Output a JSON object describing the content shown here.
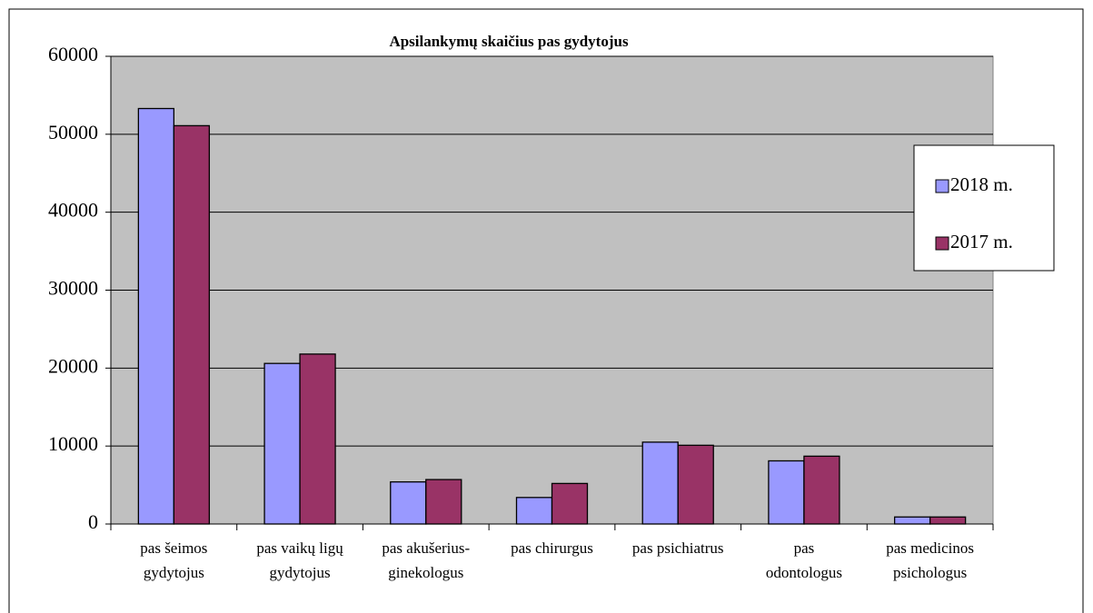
{
  "chart_data": {
    "type": "bar",
    "title": "Apsilankymų  skaičius pas gydytojus",
    "categories": [
      [
        "pas šeimos",
        "gydytojus"
      ],
      [
        "pas vaikų ligų",
        "gydytojus"
      ],
      [
        "pas akušerius-",
        "ginekologus"
      ],
      [
        "pas chirurgus"
      ],
      [
        "pas psichiatrus"
      ],
      [
        "pas",
        "odontologus"
      ],
      [
        "pas medicinos",
        "psichologus"
      ]
    ],
    "series": [
      {
        "name": "2018 m.",
        "color": "#9999ff",
        "values": [
          53300,
          20600,
          5400,
          3400,
          10500,
          8100,
          900
        ]
      },
      {
        "name": "2017 m.",
        "color": "#993366",
        "values": [
          51100,
          21800,
          5700,
          5200,
          10100,
          8700,
          900
        ]
      }
    ],
    "ylim": [
      0,
      60000
    ],
    "yticks": [
      0,
      10000,
      20000,
      30000,
      40000,
      50000,
      60000
    ],
    "grid": true,
    "legend": "right"
  }
}
